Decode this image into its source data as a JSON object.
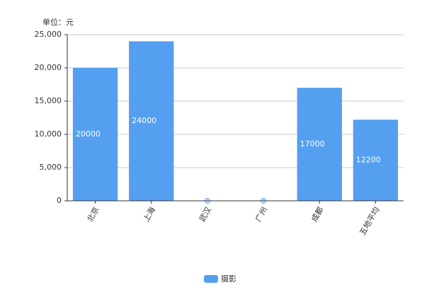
{
  "chart_data": {
    "type": "bar",
    "y_unit_label": "单位：元",
    "categories": [
      "北京",
      "上海",
      "武汉",
      "广州",
      "成都",
      "五地平均"
    ],
    "series": [
      {
        "name": "摄影",
        "color": "#559ff0",
        "values": [
          20000,
          24000,
          0,
          0,
          17000,
          12200
        ]
      }
    ],
    "ylim": [
      0,
      25000
    ],
    "yticks": [
      0,
      {
        "value": 5000,
        "label": "5,000"
      },
      {
        "value": 10000,
        "label": "10,000"
      },
      {
        "value": 15000,
        "label": "15,000"
      },
      {
        "value": 20000,
        "label": "20,000"
      },
      {
        "value": 25000,
        "label": "25,000"
      }
    ],
    "grid": true,
    "legend": "bottom"
  }
}
